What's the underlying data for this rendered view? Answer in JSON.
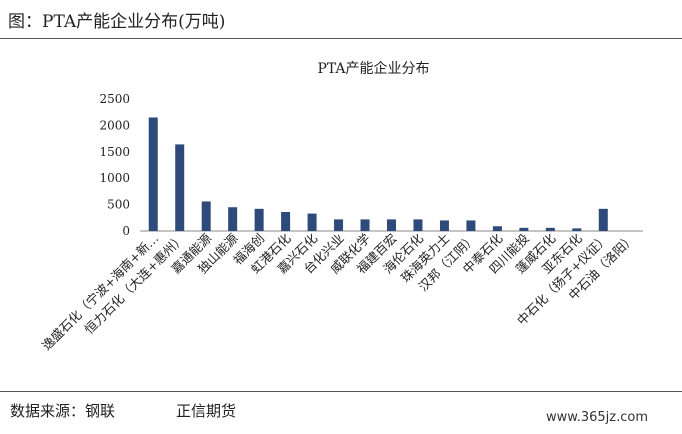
{
  "header": {
    "title": "图：PTA产能企业分布(万吨)"
  },
  "footer": {
    "source": "数据来源：钢联",
    "company": "正信期货"
  },
  "watermark": "www.365jz.com",
  "colors": {
    "bar": "#2e4a7a",
    "text": "#222222",
    "axis": "#888888"
  },
  "chart_data": {
    "type": "bar",
    "title": "PTA产能企业分布",
    "xlabel": "",
    "ylabel": "",
    "ylim": [
      0,
      2500
    ],
    "yticks": [
      0,
      500,
      1000,
      1500,
      2000,
      2500
    ],
    "grid": false,
    "legend": "none",
    "categories": [
      "逸盛石化（宁波+海南+新…",
      "恒力石化（大连+惠州）",
      "嘉通能源",
      "独山能源",
      "福海创",
      "虹港石化",
      "嘉兴石化",
      "台化兴业",
      "威联化学",
      "福建百宏",
      "海伦石化",
      "珠海英力士",
      "汉邦（江阴）",
      "中泰石化",
      "四川能投",
      "蓬威石化",
      "亚东石化",
      "中石化（扬子+仪征）",
      "中石油（洛阳）"
    ],
    "values": [
      2150,
      1640,
      560,
      450,
      420,
      360,
      330,
      220,
      220,
      220,
      220,
      200,
      200,
      90,
      60,
      60,
      50,
      420,
      0
    ]
  }
}
